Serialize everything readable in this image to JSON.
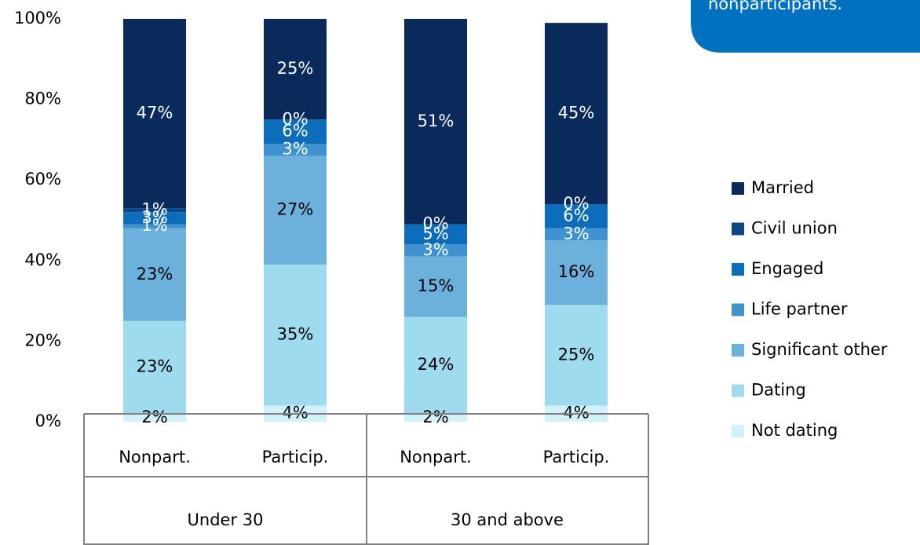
{
  "chart_data": {
    "type": "stacked_bar",
    "annotation": "nonparticipants.",
    "categories": [
      "Nonpart.",
      "Particip.",
      "Nonpart.",
      "Particip."
    ],
    "groups": [
      "Under 30",
      "30 and above"
    ],
    "ylim": [
      0,
      100
    ],
    "yticks": [
      {
        "value": 0,
        "label": "0%"
      },
      {
        "value": 20,
        "label": "20%"
      },
      {
        "value": 40,
        "label": "40%"
      },
      {
        "value": 60,
        "label": "60%"
      },
      {
        "value": 80,
        "label": "80%"
      },
      {
        "value": 100,
        "label": "100%"
      }
    ],
    "legend": "right",
    "series": [
      {
        "name": "Not dating",
        "color": "#d2f2fb",
        "values": [
          2,
          4,
          2,
          4
        ],
        "value_labels": [
          "2%",
          "4%",
          "2%",
          "4%"
        ]
      },
      {
        "name": "Dating",
        "color": "#9edbee",
        "values": [
          23,
          35,
          24,
          25
        ],
        "value_labels": [
          "23%",
          "35%",
          "24%",
          "25%"
        ]
      },
      {
        "name": "Significant other",
        "color": "#6cb1dc",
        "values": [
          23,
          27,
          15,
          16
        ],
        "value_labels": [
          "23%",
          "27%",
          "15%",
          "16%"
        ]
      },
      {
        "name": "Life partner",
        "color": "#3f92cf",
        "values": [
          1,
          3,
          3,
          3
        ],
        "value_labels": [
          "1%",
          "3%",
          "3%",
          "3%"
        ]
      },
      {
        "name": "Engaged",
        "color": "#0b6dbb",
        "values": [
          3,
          6,
          5,
          6
        ],
        "value_labels": [
          "3%",
          "6%",
          "5%",
          "6%"
        ]
      },
      {
        "name": "Civil union",
        "color": "#0a4789",
        "values": [
          1,
          0,
          0,
          0
        ],
        "value_labels": [
          "1%",
          "0%",
          "0%",
          "0%"
        ]
      },
      {
        "name": "Married",
        "color": "#0b2a5c",
        "values": [
          47,
          25,
          51,
          45
        ],
        "value_labels": [
          "47%",
          "25%",
          "51%",
          "45%"
        ]
      }
    ]
  }
}
